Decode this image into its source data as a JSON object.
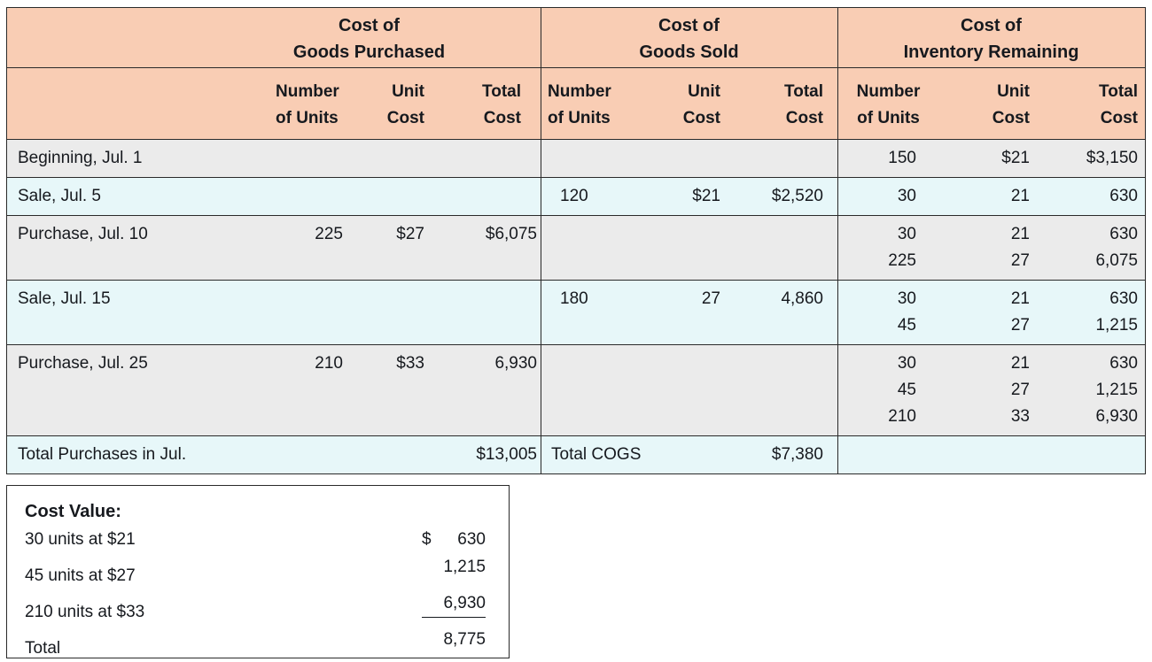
{
  "colors": {
    "header_bg": "#F9CDB4",
    "row_gray": "#EBEBEB",
    "row_cyan": "#E7F7F9",
    "border": "#2a2a2a",
    "ink": "#16191e"
  },
  "table": {
    "groups": [
      {
        "title_line1": "Cost of",
        "title_line2": "Goods Purchased"
      },
      {
        "title_line1": "Cost of",
        "title_line2": "Goods Sold"
      },
      {
        "title_line1": "Cost of",
        "title_line2": "Inventory Remaining"
      }
    ],
    "column_headers": {
      "number_line1": "Number",
      "number_line2": "of Units",
      "unit_line1": "Unit",
      "unit_line2": "Cost",
      "total_line1": "Total",
      "total_line2": "Cost"
    },
    "rows": [
      {
        "label": "Beginning, Jul. 1",
        "purchased": [],
        "cogs": [],
        "remaining": [
          {
            "units": "150",
            "unit_cost": "$21",
            "total_cost": "$3,150"
          }
        ]
      },
      {
        "label": "Sale, Jul. 5",
        "purchased": [],
        "cogs": [
          {
            "units": "120",
            "unit_cost": "$21",
            "total_cost": "$2,520"
          }
        ],
        "remaining": [
          {
            "units": "30",
            "unit_cost": "21",
            "total_cost": "630"
          }
        ]
      },
      {
        "label": "Purchase, Jul. 10",
        "purchased": [
          {
            "units": "225",
            "unit_cost": "$27",
            "total_cost": "$6,075"
          }
        ],
        "cogs": [],
        "remaining": [
          {
            "units": "30",
            "unit_cost": "21",
            "total_cost": "630"
          },
          {
            "units": "225",
            "unit_cost": "27",
            "total_cost": "6,075"
          }
        ]
      },
      {
        "label": "Sale, Jul. 15",
        "purchased": [],
        "cogs": [
          {
            "units": "180",
            "unit_cost": "27",
            "total_cost": "4,860"
          }
        ],
        "remaining": [
          {
            "units": "30",
            "unit_cost": "21",
            "total_cost": "630"
          },
          {
            "units": "45",
            "unit_cost": "27",
            "total_cost": "1,215"
          }
        ]
      },
      {
        "label": "Purchase, Jul. 25",
        "purchased": [
          {
            "units": "210",
            "unit_cost": "$33",
            "total_cost": "6,930"
          }
        ],
        "cogs": [],
        "remaining": [
          {
            "units": "30",
            "unit_cost": "21",
            "total_cost": "630"
          },
          {
            "units": "45",
            "unit_cost": "27",
            "total_cost": "1,215"
          },
          {
            "units": "210",
            "unit_cost": "33",
            "total_cost": "6,930"
          }
        ]
      }
    ],
    "totals_row": {
      "label": "Total Purchases in Jul.",
      "purchases_total": "$13,005",
      "cogs_label": "Total COGS",
      "cogs_total": "$7,380"
    }
  },
  "cost_value_box": {
    "title": "Cost Value:",
    "lines": [
      {
        "label": "30 units at $21",
        "currency": "$",
        "amount": "630"
      },
      {
        "label": "45 units at $27",
        "currency": "",
        "amount": "1,215"
      },
      {
        "label": "210 units at $33",
        "currency": "",
        "amount": "6,930"
      },
      {
        "label": "Total",
        "currency": "",
        "amount": "8,775"
      }
    ]
  }
}
